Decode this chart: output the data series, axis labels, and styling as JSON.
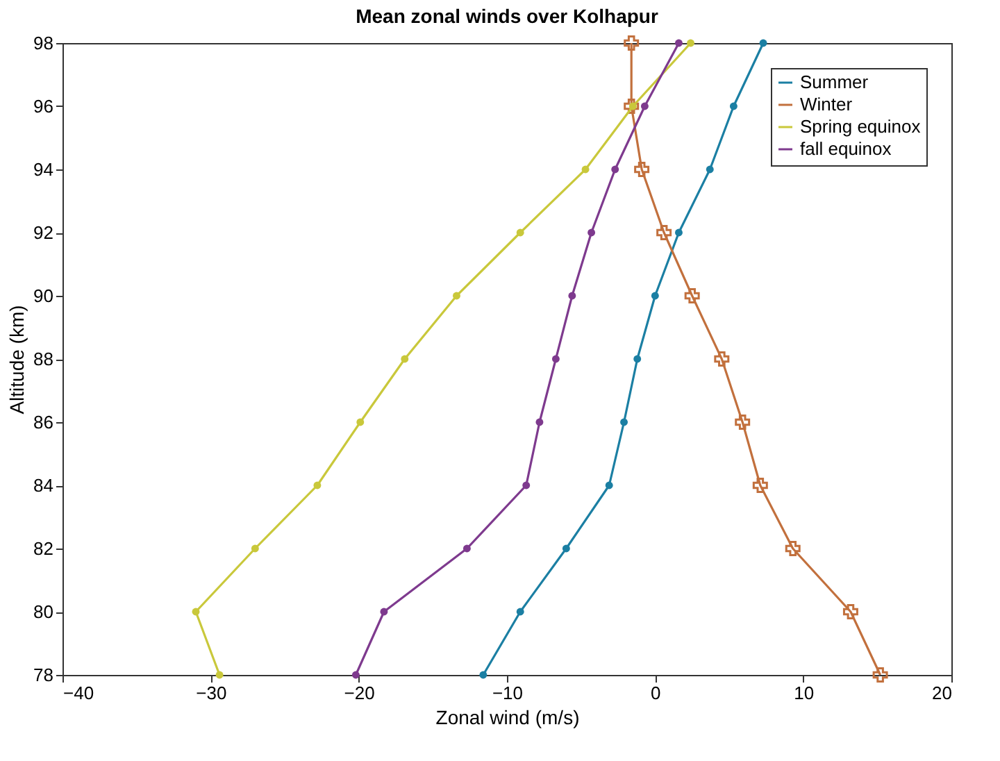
{
  "chart_data": {
    "type": "line",
    "title": "Mean zonal winds over Kolhapur",
    "xlabel": "Zonal wind (m/s)",
    "ylabel": "Altitude (km)",
    "xlim": [
      -40,
      20
    ],
    "xticks": [
      -40,
      -30,
      -20,
      -10,
      0,
      10,
      20
    ],
    "ylim": [
      78,
      98
    ],
    "yticks": [
      78,
      80,
      82,
      84,
      86,
      88,
      90,
      92,
      94,
      96,
      98
    ],
    "grid": false,
    "legend": "top right",
    "line_style": "solid",
    "series": [
      {
        "name": "Summer",
        "color": "#1b7fa3",
        "marker": "circle",
        "x": [
          -11.6,
          -9.1,
          -6.0,
          -3.1,
          -2.1,
          -1.2,
          0.0,
          1.6,
          3.7,
          5.3,
          7.3
        ],
        "values": [
          78,
          80,
          82,
          84,
          86,
          88,
          90,
          92,
          94,
          96,
          98
        ]
      },
      {
        "name": "Winter",
        "color": "#c2703d",
        "marker": "cross",
        "x": [
          15.2,
          13.2,
          9.3,
          7.1,
          5.9,
          4.5,
          2.5,
          0.6,
          -0.9,
          -1.6,
          -1.6
        ],
        "values": [
          78,
          80,
          82,
          84,
          86,
          88,
          90,
          92,
          94,
          96,
          98
        ]
      },
      {
        "name": "Spring equinox",
        "color": "#c9c83b",
        "marker": "circle",
        "x": [
          -29.4,
          -31.0,
          -27.0,
          -22.8,
          -19.9,
          -16.9,
          -13.4,
          -9.1,
          -4.7,
          -1.5,
          2.4
        ],
        "values": [
          78,
          80,
          82,
          84,
          86,
          88,
          90,
          92,
          94,
          96,
          98
        ]
      },
      {
        "name": "fall equinox",
        "color": "#7e3a8e",
        "marker": "circle",
        "x": [
          -20.2,
          -18.3,
          -12.7,
          -8.7,
          -7.8,
          -6.7,
          -5.6,
          -4.3,
          -2.7,
          -0.7,
          1.6
        ],
        "values": [
          78,
          80,
          82,
          84,
          86,
          88,
          90,
          92,
          94,
          96,
          98
        ]
      }
    ]
  }
}
